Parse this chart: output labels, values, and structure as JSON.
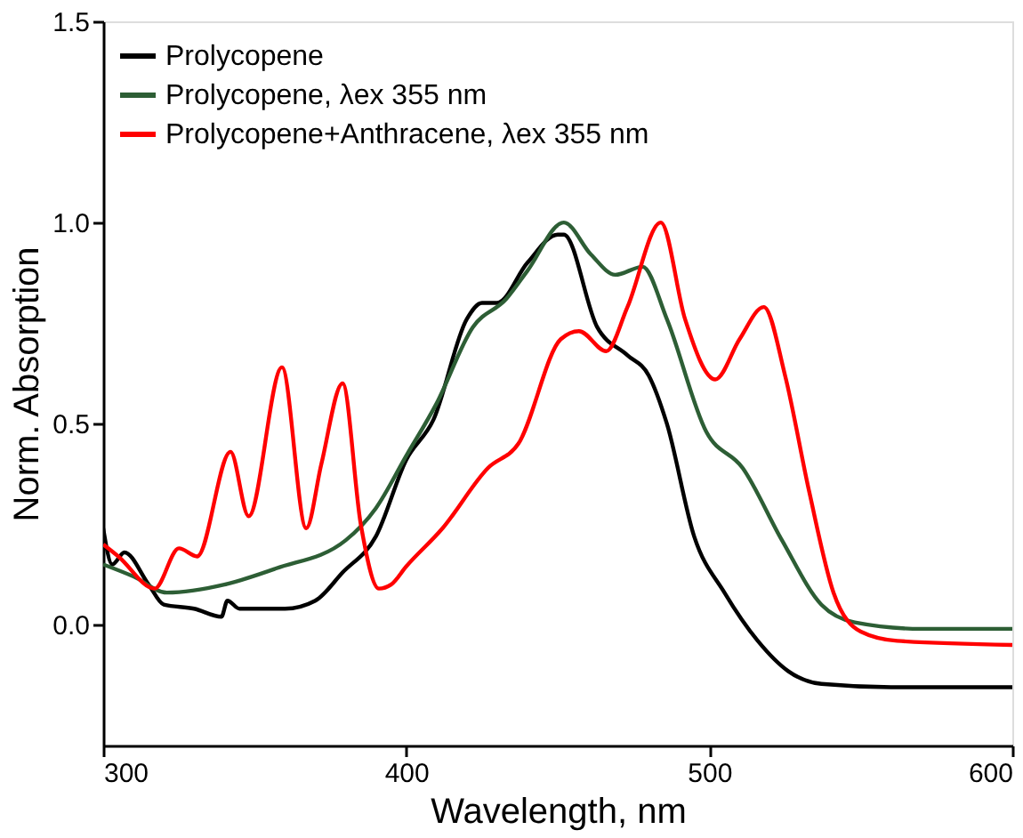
{
  "chart_data": {
    "type": "line",
    "xlabel": "Wavelength, nm",
    "ylabel": "Norm. Absorption",
    "xlim": [
      300,
      600
    ],
    "ylim": [
      -0.3,
      1.5
    ],
    "xticks": [
      300,
      400,
      500,
      600
    ],
    "yticks": [
      {
        "value": 0,
        "label": "0.0"
      },
      {
        "value": 0.5,
        "label": "0.5"
      },
      {
        "value": 1,
        "label": "1.0"
      },
      {
        "value": 1.5,
        "label": "1.5"
      }
    ],
    "grid": false,
    "legend": "top left",
    "marker": "none",
    "line_style": "solid",
    "series": [
      {
        "name": "Prolycopene",
        "color": "#000000",
        "x": [
          300,
          303,
          307,
          315,
          320,
          330,
          339,
          341,
          345,
          350,
          360,
          370,
          379,
          390,
          400,
          409,
          420,
          425,
          430,
          440,
          450,
          452,
          463,
          473,
          480,
          486,
          495,
          505,
          516,
          526,
          537,
          560,
          600
        ],
        "values": [
          0.24,
          0.15,
          0.18,
          0.1,
          0.05,
          0.04,
          0.02,
          0.06,
          0.04,
          0.04,
          0.04,
          0.06,
          0.13,
          0.22,
          0.41,
          0.51,
          0.76,
          0.8,
          0.8,
          0.9,
          0.97,
          0.97,
          0.74,
          0.67,
          0.62,
          0.5,
          0.22,
          0.08,
          -0.04,
          -0.115,
          -0.147,
          -0.155,
          -0.155
        ]
      },
      {
        "name": "Prolycopene, λex 355 nm",
        "color": "#2d5e35",
        "x": [
          300,
          310,
          321,
          340,
          357,
          380,
          390,
          400,
          410,
          422,
          433,
          440,
          452,
          461,
          469,
          478,
          486,
          499,
          511,
          524,
          537,
          548,
          570,
          600
        ],
        "values": [
          0.15,
          0.12,
          0.08,
          0.1,
          0.14,
          0.21,
          0.29,
          0.42,
          0.55,
          0.74,
          0.81,
          0.88,
          1.0,
          0.92,
          0.87,
          0.89,
          0.76,
          0.48,
          0.39,
          0.21,
          0.05,
          0.006,
          -0.01,
          -0.01
        ]
      },
      {
        "name": "Prolycopene+Anthracene, λex 355 nm",
        "color": "#ff0000",
        "x": [
          300,
          305,
          317,
          325,
          331,
          342,
          348,
          359,
          367,
          372,
          379,
          385,
          391,
          395,
          400,
          412,
          427,
          437,
          451,
          457,
          466,
          473,
          484,
          492,
          502,
          510,
          518,
          525,
          533,
          541,
          550,
          562,
          600
        ],
        "values": [
          0.2,
          0.17,
          0.09,
          0.19,
          0.17,
          0.43,
          0.27,
          0.64,
          0.24,
          0.4,
          0.6,
          0.25,
          0.09,
          0.1,
          0.145,
          0.24,
          0.39,
          0.45,
          0.71,
          0.73,
          0.68,
          0.79,
          1.0,
          0.76,
          0.61,
          0.71,
          0.79,
          0.62,
          0.33,
          0.08,
          -0.017,
          -0.04,
          -0.05
        ]
      }
    ]
  }
}
